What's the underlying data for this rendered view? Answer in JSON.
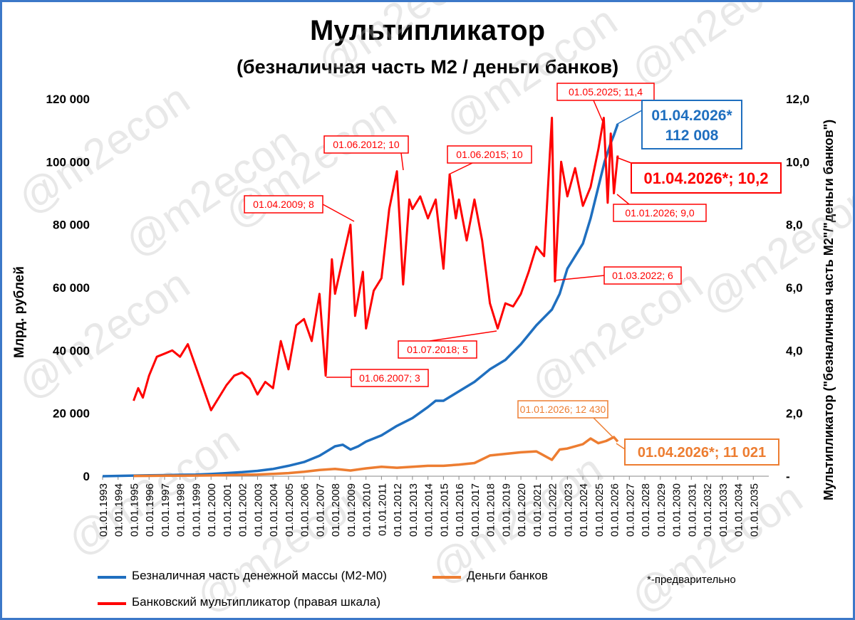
{
  "chart_data": {
    "type": "line",
    "title": "Мультипликатор",
    "subtitle": "(безналичная часть М2 / деньги банков)",
    "ylabel_left": "Млрд. рублей",
    "ylabel_right": "Мультипликатор (\"безналичная часть М2\"/\"деньги банков\")",
    "left_axis": {
      "range": [
        0,
        120000
      ],
      "ticks": [
        "0",
        "20 000",
        "40 000",
        "60 000",
        "80 000",
        "100 000",
        "120 000"
      ]
    },
    "right_axis": {
      "range": [
        0,
        12
      ],
      "ticks": [
        "-",
        "2,0",
        "4,0",
        "6,0",
        "8,0",
        "10,0",
        "12,0"
      ]
    },
    "x_ticks": [
      "01.01.1993",
      "01.01.1994",
      "01.01.1995",
      "01.01.1996",
      "01.01.1997",
      "01.01.1998",
      "01.01.1999",
      "01.01.2000",
      "01.01.2001",
      "01.01.2002",
      "01.01.2003",
      "01.01.2004",
      "01.01.2005",
      "01.01.2006",
      "01.01.2007",
      "01.01.2008",
      "01.01.2009",
      "01.01.2010",
      "01.01.2011",
      "01.01.2012",
      "01.01.2013",
      "01.01.2014",
      "01.01.2015",
      "01.01.2016",
      "01.01.2017",
      "01.01.2018",
      "01.01.2019",
      "01.01.2020",
      "01.01.2021",
      "01.01.2022",
      "01.01.2023",
      "01.01.2024",
      "01.01.2025",
      "01.01.2026",
      "01.01.2027",
      "01.01.2028",
      "01.01.2029",
      "01.01.2030",
      "01.01.2031",
      "01.01.2032",
      "01.01.2033",
      "01.01.2034",
      "01.01.2035"
    ],
    "series": [
      {
        "name": "Безналичная часть денежной массы (М2-М0)",
        "axis": "left",
        "color": "#1f6fbf",
        "points": [
          [
            1993,
            0
          ],
          [
            1995,
            200
          ],
          [
            1996,
            300
          ],
          [
            1997,
            350
          ],
          [
            1998,
            450
          ],
          [
            1999,
            500
          ],
          [
            2000,
            700
          ],
          [
            2001,
            1000
          ],
          [
            2002,
            1300
          ],
          [
            2003,
            1700
          ],
          [
            2004,
            2300
          ],
          [
            2005,
            3300
          ],
          [
            2006,
            4500
          ],
          [
            2007,
            6500
          ],
          [
            2008,
            9500
          ],
          [
            2008.5,
            10000
          ],
          [
            2009,
            8500
          ],
          [
            2009.5,
            9500
          ],
          [
            2010,
            11000
          ],
          [
            2011,
            13000
          ],
          [
            2012,
            16000
          ],
          [
            2013,
            18500
          ],
          [
            2014,
            22000
          ],
          [
            2014.5,
            24000
          ],
          [
            2015,
            24000
          ],
          [
            2016,
            27000
          ],
          [
            2017,
            30000
          ],
          [
            2018,
            34000
          ],
          [
            2019,
            37000
          ],
          [
            2020,
            42000
          ],
          [
            2021,
            48000
          ],
          [
            2022,
            53000
          ],
          [
            2022.5,
            58000
          ],
          [
            2023,
            66000
          ],
          [
            2024,
            74000
          ],
          [
            2024.5,
            82000
          ],
          [
            2025,
            92000
          ],
          [
            2025.4,
            100000
          ],
          [
            2025.8,
            106000
          ],
          [
            2026,
            108500
          ],
          [
            2026.25,
            112008
          ]
        ]
      },
      {
        "name": "Деньги банков",
        "axis": "left",
        "color": "#ed7d31",
        "points": [
          [
            1995,
            80
          ],
          [
            1996,
            120
          ],
          [
            1997,
            150
          ],
          [
            1998,
            180
          ],
          [
            1999,
            200
          ],
          [
            2000,
            250
          ],
          [
            2001,
            350
          ],
          [
            2002,
            450
          ],
          [
            2003,
            550
          ],
          [
            2004,
            750
          ],
          [
            2005,
            1000
          ],
          [
            2006,
            1400
          ],
          [
            2007,
            2000
          ],
          [
            2008,
            2300
          ],
          [
            2009,
            1800
          ],
          [
            2010,
            2500
          ],
          [
            2011,
            3000
          ],
          [
            2012,
            2700
          ],
          [
            2013,
            3000
          ],
          [
            2014,
            3300
          ],
          [
            2015,
            3300
          ],
          [
            2016,
            3700
          ],
          [
            2017,
            4200
          ],
          [
            2018,
            6600
          ],
          [
            2019,
            7100
          ],
          [
            2020,
            7600
          ],
          [
            2021,
            7900
          ],
          [
            2022,
            5200
          ],
          [
            2022.5,
            8500
          ],
          [
            2023,
            8800
          ],
          [
            2024,
            10200
          ],
          [
            2024.5,
            12000
          ],
          [
            2025,
            10500
          ],
          [
            2025.5,
            11200
          ],
          [
            2026,
            12430
          ],
          [
            2026.25,
            11021
          ]
        ]
      },
      {
        "name": "Банковский мультипликатор (правая шкала)",
        "axis": "right",
        "color": "#ff0000",
        "points": [
          [
            1995,
            2.4
          ],
          [
            1995.3,
            2.8
          ],
          [
            1995.6,
            2.5
          ],
          [
            1996,
            3.2
          ],
          [
            1996.5,
            3.8
          ],
          [
            1997,
            3.9
          ],
          [
            1997.5,
            4.0
          ],
          [
            1998,
            3.8
          ],
          [
            1998.5,
            4.2
          ],
          [
            1999,
            3.5
          ],
          [
            1999.5,
            2.8
          ],
          [
            2000,
            2.1
          ],
          [
            2000.5,
            2.5
          ],
          [
            2001,
            2.9
          ],
          [
            2001.5,
            3.2
          ],
          [
            2002,
            3.3
          ],
          [
            2002.5,
            3.1
          ],
          [
            2003,
            2.6
          ],
          [
            2003.5,
            3.0
          ],
          [
            2004,
            2.8
          ],
          [
            2004.5,
            4.3
          ],
          [
            2005,
            3.4
          ],
          [
            2005.5,
            4.8
          ],
          [
            2006,
            5.0
          ],
          [
            2006.5,
            4.3
          ],
          [
            2007,
            5.8
          ],
          [
            2007.4,
            3.2
          ],
          [
            2007.8,
            6.9
          ],
          [
            2008,
            5.8
          ],
          [
            2008.5,
            6.9
          ],
          [
            2009,
            8.0
          ],
          [
            2009.3,
            5.1
          ],
          [
            2009.8,
            6.5
          ],
          [
            2010,
            4.7
          ],
          [
            2010.5,
            5.9
          ],
          [
            2011,
            6.3
          ],
          [
            2011.5,
            8.5
          ],
          [
            2012,
            9.7
          ],
          [
            2012.4,
            6.1
          ],
          [
            2012.8,
            8.8
          ],
          [
            2013,
            8.5
          ],
          [
            2013.5,
            8.9
          ],
          [
            2014,
            8.2
          ],
          [
            2014.5,
            8.8
          ],
          [
            2015,
            6.6
          ],
          [
            2015.4,
            9.6
          ],
          [
            2015.8,
            8.2
          ],
          [
            2016,
            8.8
          ],
          [
            2016.5,
            7.5
          ],
          [
            2017,
            8.8
          ],
          [
            2017.5,
            7.5
          ],
          [
            2018,
            5.5
          ],
          [
            2018.5,
            4.7
          ],
          [
            2019,
            5.5
          ],
          [
            2019.5,
            5.4
          ],
          [
            2020,
            5.8
          ],
          [
            2020.5,
            6.5
          ],
          [
            2021,
            7.3
          ],
          [
            2021.5,
            7.0
          ],
          [
            2022,
            11.4
          ],
          [
            2022.2,
            6.2
          ],
          [
            2022.6,
            10.0
          ],
          [
            2023,
            8.9
          ],
          [
            2023.5,
            9.8
          ],
          [
            2024,
            8.6
          ],
          [
            2024.5,
            9.2
          ],
          [
            2025,
            10.4
          ],
          [
            2025.35,
            11.4
          ],
          [
            2025.6,
            8.7
          ],
          [
            2025.8,
            10.9
          ],
          [
            2026,
            9.0
          ],
          [
            2026.25,
            10.2
          ]
        ]
      }
    ],
    "annotations": {
      "red": [
        "01.06.2007; 3",
        "01.04.2009; 8",
        "01.06.2012; 10",
        "01.06.2015; 10",
        "01.07.2018; 5",
        "01.03.2022; 6",
        "01.05.2025; 11,4",
        "01.01.2026;  9,0"
      ],
      "red_big": "01.04.2026*;   10,2",
      "blue_line1": "01.04.2026*",
      "blue_line2": "112 008",
      "orange_small": "01.01.2026; 12 430",
      "orange_big": "01.04.2026*; 11 021"
    },
    "legend": {
      "blue": "Безналичная часть денежной массы (М2-М0)",
      "orange": "Деньги банков",
      "red": "Банковский мультипликатор (правая шкала)",
      "note": "*-предварительно"
    },
    "watermark": "@m2econ"
  }
}
